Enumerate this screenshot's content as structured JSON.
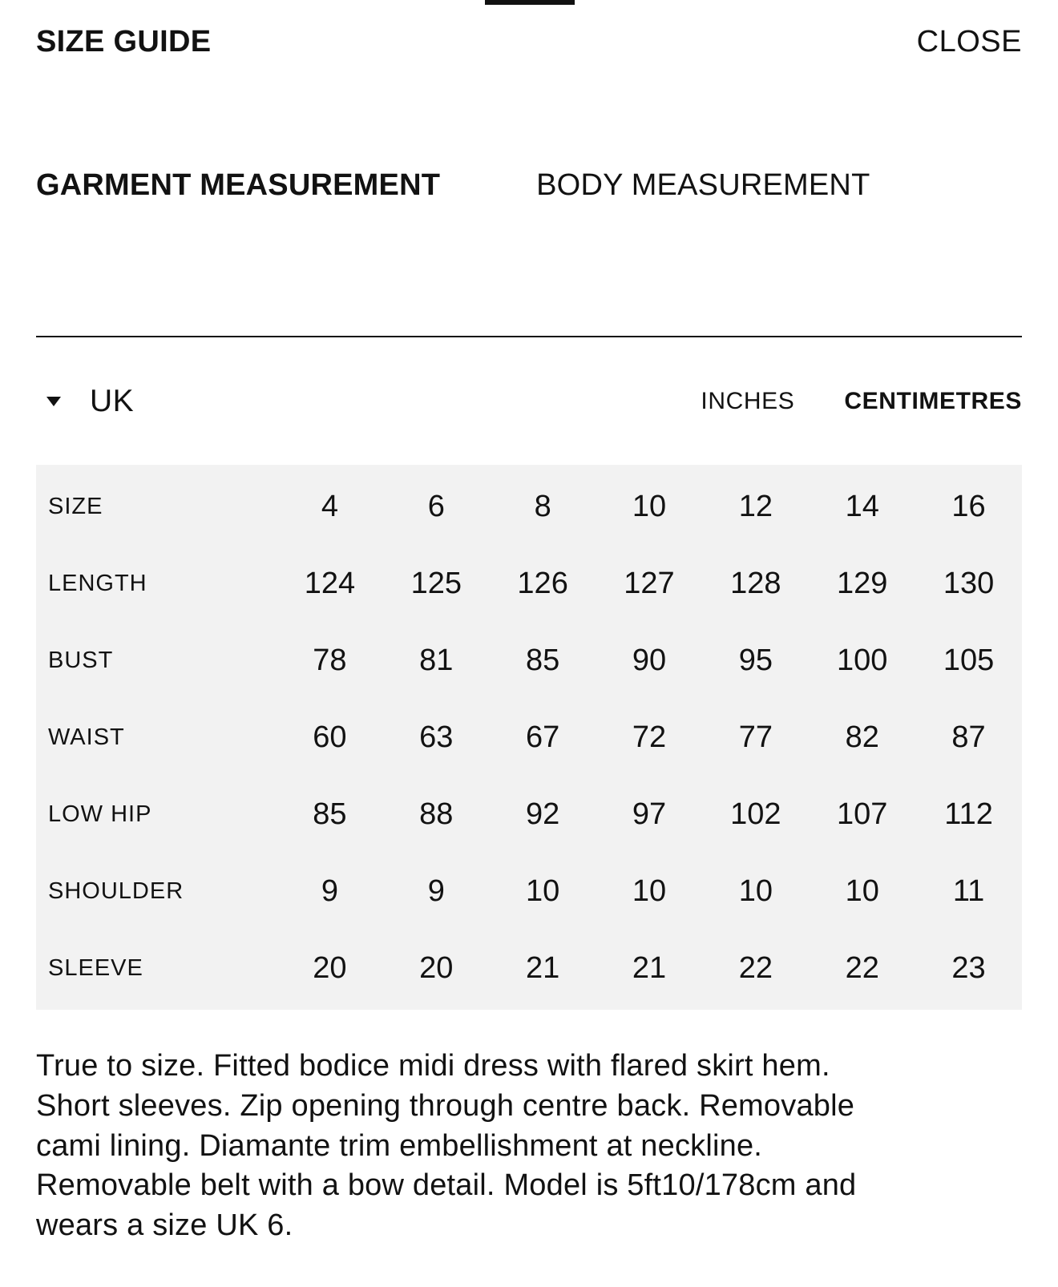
{
  "header": {
    "title": "SIZE GUIDE",
    "close_label": "CLOSE"
  },
  "tabs": [
    {
      "label": "GARMENT MEASUREMENT",
      "active": true
    },
    {
      "label": "BODY MEASUREMENT",
      "active": false
    }
  ],
  "region": {
    "selected": "UK",
    "icon": "chevron-down-icon"
  },
  "units": {
    "options": [
      "INCHES",
      "CENTIMETRES"
    ],
    "inches_label": "INCHES",
    "centimetres_label": "CENTIMETRES",
    "selected": "CENTIMETRES"
  },
  "table": {
    "rows": [
      {
        "label": "SIZE",
        "values": [
          "4",
          "6",
          "8",
          "10",
          "12",
          "14",
          "16"
        ]
      },
      {
        "label": "LENGTH",
        "values": [
          "124",
          "125",
          "126",
          "127",
          "128",
          "129",
          "130"
        ]
      },
      {
        "label": "BUST",
        "values": [
          "78",
          "81",
          "85",
          "90",
          "95",
          "100",
          "105"
        ]
      },
      {
        "label": "WAIST",
        "values": [
          "60",
          "63",
          "67",
          "72",
          "77",
          "82",
          "87"
        ]
      },
      {
        "label": "LOW HIP",
        "values": [
          "85",
          "88",
          "92",
          "97",
          "102",
          "107",
          "112"
        ]
      },
      {
        "label": "SHOULDER",
        "values": [
          "9",
          "9",
          "10",
          "10",
          "10",
          "10",
          "11"
        ]
      },
      {
        "label": "SLEEVE",
        "values": [
          "20",
          "20",
          "21",
          "21",
          "22",
          "22",
          "23"
        ]
      }
    ]
  },
  "description": {
    "lines": [
      "True to size. Fitted bodice midi dress with flared skirt hem.",
      "Short sleeves. Zip opening through centre back. Removable",
      "cami lining. Diamante trim embellishment at neckline.",
      "Removable belt with a bow detail. Model is 5ft10/178cm and",
      "wears a size UK 6."
    ]
  },
  "colors": {
    "table_background": "#f2f2f2",
    "text": "#121212",
    "divider": "#121212"
  }
}
